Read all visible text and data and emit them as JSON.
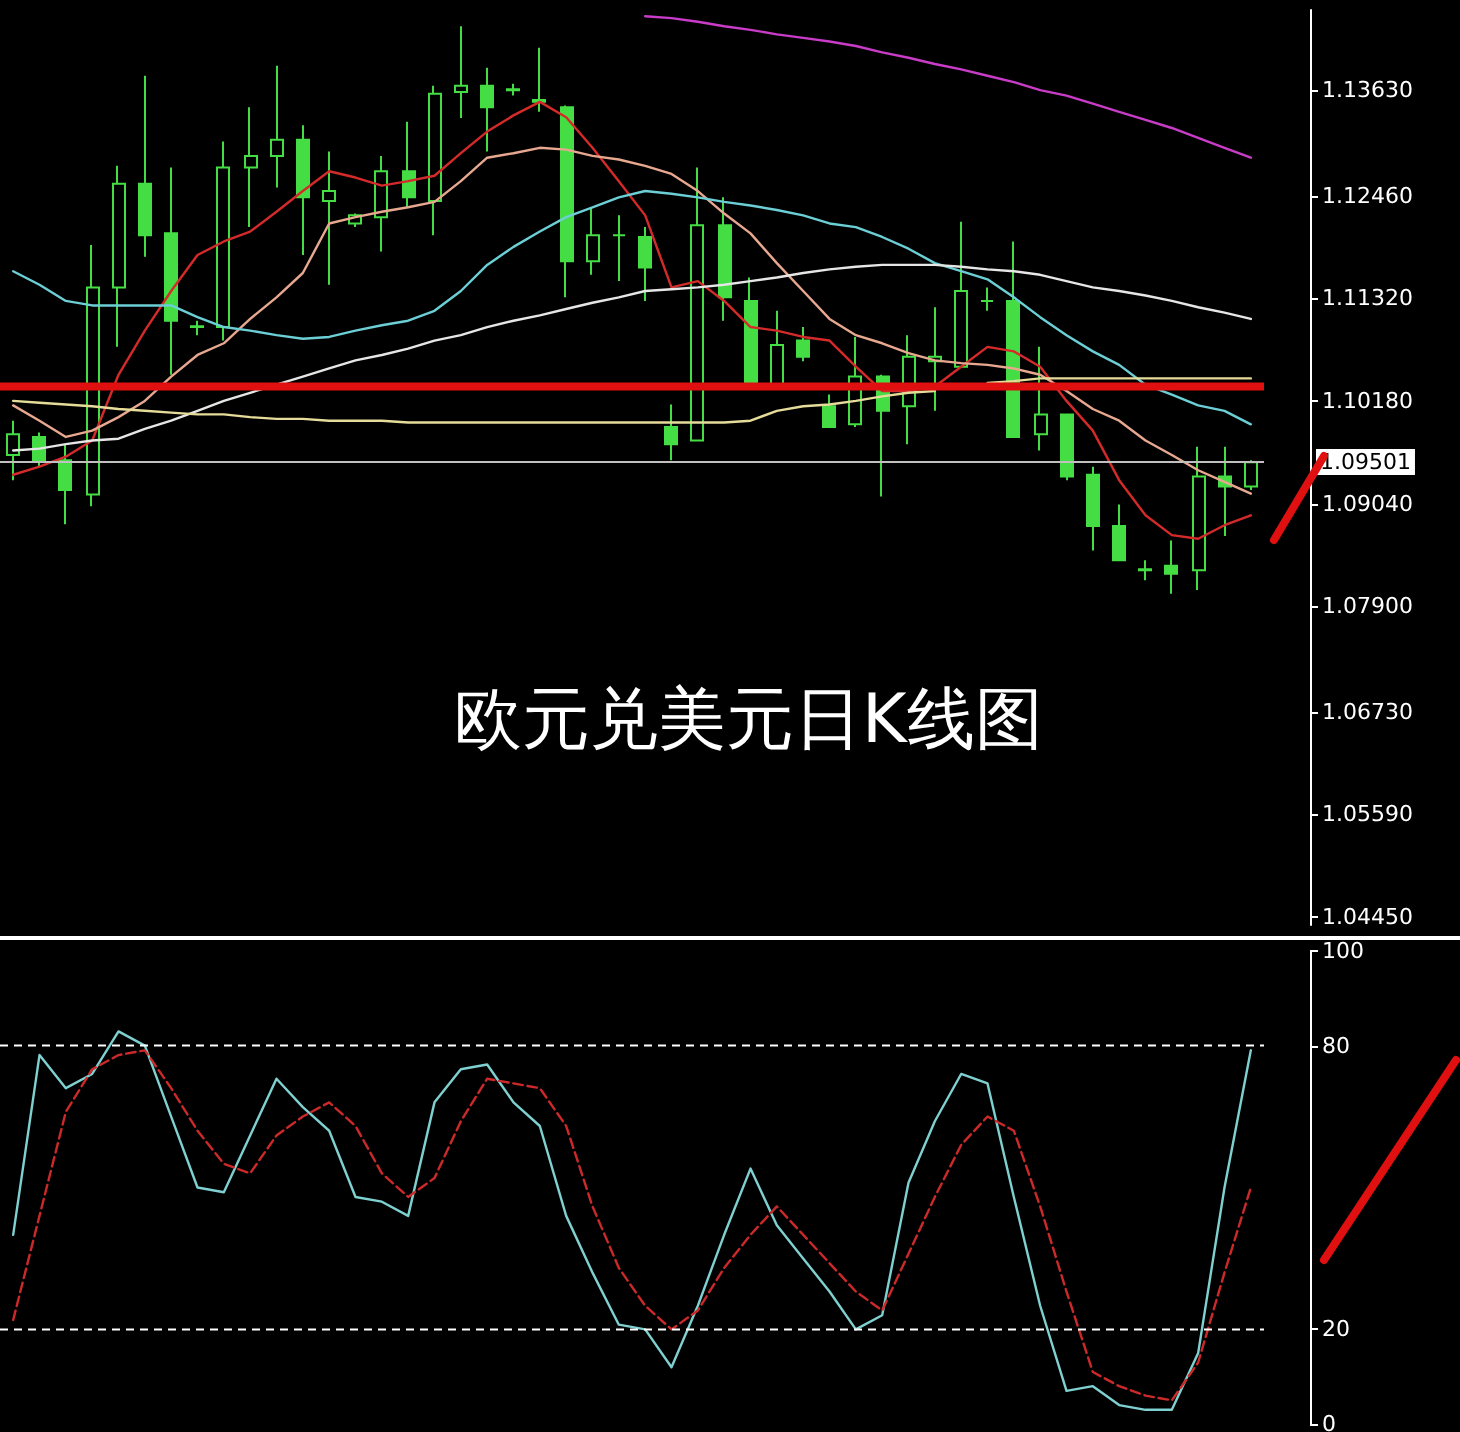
{
  "chart_data": [
    {
      "type": "candlestick",
      "title": "欧元兑美元日K线图",
      "categories": [
        null,
        null,
        null,
        null,
        null,
        null,
        null,
        null,
        null,
        null,
        null,
        null,
        null,
        null,
        null,
        null,
        null,
        null,
        null,
        null,
        null,
        null,
        null,
        null,
        null,
        null,
        null,
        null,
        null,
        null,
        null,
        null,
        null,
        null,
        null,
        null,
        null,
        null,
        null,
        null,
        null,
        null,
        null,
        null,
        null,
        null,
        null,
        null
      ],
      "series": [
        {
          "color": "#44dd44",
          "ohlc": [
            [
              1.0958,
              1.0996,
              1.093,
              1.0981
            ],
            [
              1.0978,
              1.0983,
              1.0945,
              1.0952
            ],
            [
              1.0952,
              1.097,
              1.0881,
              1.0919
            ],
            [
              1.0914,
              1.1191,
              1.0901,
              1.1144
            ],
            [
              1.1144,
              1.1279,
              1.1078,
              1.1259
            ],
            [
              1.1259,
              1.1379,
              1.1178,
              1.1202
            ],
            [
              1.1204,
              1.1277,
              1.1047,
              1.1107
            ],
            [
              1.1101,
              1.1107,
              1.1091,
              1.11
            ],
            [
              1.11,
              1.1306,
              1.1085,
              1.1277
            ],
            [
              1.1277,
              1.1344,
              1.1211,
              1.129
            ],
            [
              1.129,
              1.139,
              1.1255,
              1.1308
            ],
            [
              1.1308,
              1.1324,
              1.118,
              1.1244
            ],
            [
              1.124,
              1.1295,
              1.1147,
              1.1251
            ],
            [
              1.1215,
              1.1226,
              1.1211,
              1.1224
            ],
            [
              1.1222,
              1.129,
              1.1184,
              1.1273
            ],
            [
              1.1273,
              1.1328,
              1.1233,
              1.1244
            ],
            [
              1.124,
              1.1368,
              1.1202,
              1.1359
            ],
            [
              1.1361,
              1.1434,
              1.1332,
              1.1368
            ],
            [
              1.1368,
              1.1388,
              1.1295,
              1.1344
            ],
            [
              1.1364,
              1.137,
              1.1357,
              1.1363
            ],
            [
              1.135,
              1.141,
              1.1339,
              1.1352
            ],
            [
              1.1344,
              1.1346,
              1.1133,
              1.1173
            ],
            [
              1.1173,
              1.1233,
              1.1158,
              1.1202
            ],
            [
              1.1202,
              1.1224,
              1.1151,
              1.1202
            ],
            [
              1.12,
              1.1211,
              1.1129,
              1.1166
            ],
            [
              1.0989,
              1.1014,
              1.0952,
              1.097
            ],
            [
              1.0974,
              1.1277,
              1.0974,
              1.1213
            ],
            [
              1.1213,
              1.1244,
              1.1107,
              1.1133
            ],
            [
              1.1129,
              1.1155,
              1.1036,
              1.1036
            ],
            [
              1.1036,
              1.1118,
              1.1036,
              1.108
            ],
            [
              1.1085,
              1.11,
              1.1062,
              1.1067
            ],
            [
              1.1012,
              1.1025,
              1.0989,
              1.0989
            ],
            [
              1.0992,
              1.1089,
              1.0989,
              1.1045
            ],
            [
              1.1045,
              1.1047,
              1.0912,
              1.1007
            ],
            [
              1.1012,
              1.1091,
              1.097,
              1.1067
            ],
            [
              1.1062,
              1.1122,
              1.1007,
              1.1067
            ],
            [
              1.1056,
              1.1217,
              1.1056,
              1.114
            ],
            [
              1.1129,
              1.1144,
              1.1118,
              1.1129
            ],
            [
              1.1129,
              1.1195,
              1.0978,
              1.0978
            ],
            [
              1.0981,
              1.1078,
              1.0963,
              1.1003
            ],
            [
              1.1003,
              1.1003,
              1.093,
              1.0934
            ],
            [
              1.0936,
              1.0945,
              1.0852,
              1.0879
            ],
            [
              1.0879,
              1.0903,
              1.0841,
              1.0841
            ],
            [
              1.0831,
              1.0841,
              1.0819,
              1.083
            ],
            [
              1.0835,
              1.0863,
              1.0804,
              1.0826
            ],
            [
              1.083,
              1.0967,
              1.0808,
              1.0934
            ],
            [
              1.0934,
              1.0967,
              1.0868,
              1.0923
            ],
            [
              1.0923,
              1.0952,
              1.0919,
              1.095
            ]
          ]
        },
        {
          "type": "line",
          "color": "#d42a2a",
          "values": [
            1.0936,
            1.0945,
            1.0956,
            1.0974,
            1.1047,
            1.1096,
            1.114,
            1.118,
            1.1195,
            1.1206,
            1.1228,
            1.1251,
            1.1273,
            1.1266,
            1.1257,
            1.1262,
            1.1268,
            1.1293,
            1.1317,
            1.1335,
            1.135,
            1.1333,
            1.1299,
            1.1262,
            1.1224,
            1.1144,
            1.1151,
            1.1129,
            1.11,
            1.1096,
            1.1089,
            1.1085,
            1.1056,
            1.1029,
            1.1029,
            1.1034,
            1.1056,
            1.1078,
            1.1073,
            1.1056,
            1.1018,
            1.0985,
            1.093,
            1.0891,
            1.0869,
            1.0865,
            1.088,
            1.0891
          ]
        },
        {
          "type": "line",
          "color": "#e8a890",
          "values": [
            1.1013,
            1.0996,
            1.0978,
            1.0985,
            1.1,
            1.1018,
            1.1045,
            1.1069,
            1.1082,
            1.1109,
            1.1133,
            1.116,
            1.1215,
            1.1222,
            1.1228,
            1.1233,
            1.1239,
            1.1262,
            1.1288,
            1.1293,
            1.1299,
            1.1297,
            1.129,
            1.1286,
            1.1279,
            1.127,
            1.1251,
            1.1226,
            1.1204,
            1.1171,
            1.114,
            1.1109,
            1.1091,
            1.1082,
            1.1071,
            1.1063,
            1.106,
            1.1058,
            1.1054,
            1.1047,
            1.1029,
            1.1009,
            1.0996,
            1.0974,
            1.0958,
            1.0941,
            1.0928,
            1.0915
          ]
        },
        {
          "type": "line",
          "color": "#6ccfd6",
          "values": [
            1.1162,
            1.1147,
            1.1129,
            1.1124,
            1.1124,
            1.1124,
            1.1124,
            1.1111,
            1.11,
            1.1096,
            1.1091,
            1.1087,
            1.1089,
            1.1096,
            1.1102,
            1.1107,
            1.1118,
            1.114,
            1.1169,
            1.1189,
            1.1206,
            1.1222,
            1.1233,
            1.1244,
            1.1251,
            1.1248,
            1.1244,
            1.1239,
            1.1235,
            1.123,
            1.1224,
            1.1215,
            1.1211,
            1.12,
            1.1187,
            1.1171,
            1.1162,
            1.1153,
            1.1133,
            1.1111,
            1.1091,
            1.1073,
            1.1058,
            1.1036,
            1.1025,
            1.1013,
            1.1007,
            1.0992
          ]
        },
        {
          "type": "line",
          "color": "#e6e6e6",
          "values": [
            1.0963,
            1.0965,
            1.097,
            1.0974,
            1.0976,
            1.0987,
            1.0996,
            1.1007,
            1.1018,
            1.1027,
            1.1036,
            1.1045,
            1.1054,
            1.1063,
            1.1069,
            1.1076,
            1.1085,
            1.1091,
            1.11,
            1.1107,
            1.1113,
            1.112,
            1.1127,
            1.1133,
            1.114,
            1.1142,
            1.1144,
            1.1147,
            1.1151,
            1.1155,
            1.116,
            1.1164,
            1.1167,
            1.1169,
            1.1169,
            1.1169,
            1.1167,
            1.1164,
            1.1162,
            1.1158,
            1.1151,
            1.1144,
            1.114,
            1.1135,
            1.1129,
            1.1122,
            1.1116,
            1.1109
          ]
        },
        {
          "type": "line",
          "color": "#e6dc9a",
          "values": [
            1.1018,
            1.1016,
            1.1014,
            1.1012,
            1.1009,
            1.1007,
            1.1005,
            1.1003,
            1.1003,
            1.1,
            1.0998,
            1.0998,
            1.0996,
            1.0996,
            1.0996,
            1.0994,
            1.0994,
            1.0994,
            1.0994,
            1.0994,
            1.0994,
            1.0994,
            1.0994,
            1.0994,
            1.0994,
            1.0994,
            1.0994,
            1.0994,
            1.0996,
            1.1007,
            1.1012,
            1.1014,
            1.1018,
            1.1023,
            1.1027,
            1.1029,
            null,
            1.1038,
            1.104,
            1.1043,
            1.1043,
            1.1043,
            1.1043,
            1.1043,
            1.1043,
            1.1043,
            1.1043,
            1.1043
          ]
        },
        {
          "type": "line",
          "color": "#c83cc8",
          "values": [
            null,
            null,
            null,
            null,
            null,
            null,
            null,
            null,
            null,
            null,
            null,
            null,
            null,
            null,
            null,
            null,
            null,
            null,
            null,
            null,
            null,
            null,
            null,
            null,
            1.1445,
            1.1443,
            1.1439,
            1.1434,
            1.143,
            1.1425,
            1.1421,
            1.1417,
            1.1412,
            1.1405,
            1.1399,
            1.1392,
            1.1386,
            1.1379,
            1.1372,
            1.1363,
            1.1357,
            1.1348,
            1.1339,
            1.133,
            1.1321,
            1.131,
            1.1299,
            1.1288
          ]
        }
      ],
      "ylim": [
        1.0436,
        1.1452
      ],
      "yticks": [
        {
          "value": 1.0445,
          "label": "1.04450"
        },
        {
          "value": 1.0559,
          "label": "1.05590"
        },
        {
          "value": 1.0673,
          "label": "1.06730"
        },
        {
          "value": 1.079,
          "label": "1.07900"
        },
        {
          "value": 1.0904,
          "label": "1.09040"
        },
        {
          "value": 1.1018,
          "label": "1.10180"
        },
        {
          "value": 1.1132,
          "label": "1.11320"
        },
        {
          "value": 1.1246,
          "label": "1.12460"
        },
        {
          "value": 1.1363,
          "label": "1.13630"
        }
      ],
      "ref_lines": [
        {
          "axis": "y",
          "value": 1.09501,
          "label": "1.09501",
          "color": "#c0c0c0"
        },
        {
          "axis": "y",
          "value": 1.1034,
          "color": "#e01010"
        }
      ],
      "marker": "none",
      "tick_labels": "y"
    },
    {
      "type": "line",
      "categories": [
        null,
        null,
        null,
        null,
        null,
        null,
        null,
        null,
        null,
        null,
        null,
        null,
        null,
        null,
        null,
        null,
        null,
        null,
        null,
        null,
        null,
        null,
        null,
        null,
        null,
        null,
        null,
        null,
        null,
        null,
        null,
        null,
        null,
        null,
        null,
        null,
        null,
        null,
        null,
        null,
        null,
        null,
        null,
        null,
        null,
        null,
        null,
        null
      ],
      "series": [
        {
          "color": "#7fd0d0",
          "values": [
            40,
            78,
            71,
            74,
            83,
            80,
            65,
            50,
            49,
            61,
            73,
            67,
            62,
            48,
            47,
            44,
            68,
            75,
            76,
            68,
            63,
            44,
            32,
            21,
            20,
            12,
            25,
            40,
            54,
            42,
            35,
            28,
            20,
            23,
            51,
            64,
            74,
            72,
            48,
            25,
            7,
            8,
            4,
            3,
            3,
            15,
            50,
            79
          ]
        },
        {
          "color": "#cc2a2a",
          "line_style": "dashed",
          "values": [
            22,
            44,
            66,
            75,
            78,
            79,
            71,
            62,
            55,
            53,
            61,
            65,
            68,
            63,
            53,
            48,
            52,
            64,
            73,
            72,
            71,
            63,
            46,
            33,
            25,
            20,
            24,
            33,
            40,
            46,
            40,
            34,
            28,
            24,
            36,
            48,
            59,
            65,
            62,
            46,
            28,
            11,
            8,
            6,
            5,
            13,
            32,
            50
          ]
        }
      ],
      "ylim": [
        0,
        100
      ],
      "yticks": [
        0,
        20,
        80,
        100
      ],
      "ref_lines": [
        {
          "axis": "y",
          "value": 20,
          "color": "#ffffff",
          "line_style": "dashed"
        },
        {
          "axis": "y",
          "value": 80,
          "color": "#ffffff",
          "line_style": "dashed"
        }
      ],
      "marker": "none",
      "tick_labels": "y"
    }
  ]
}
